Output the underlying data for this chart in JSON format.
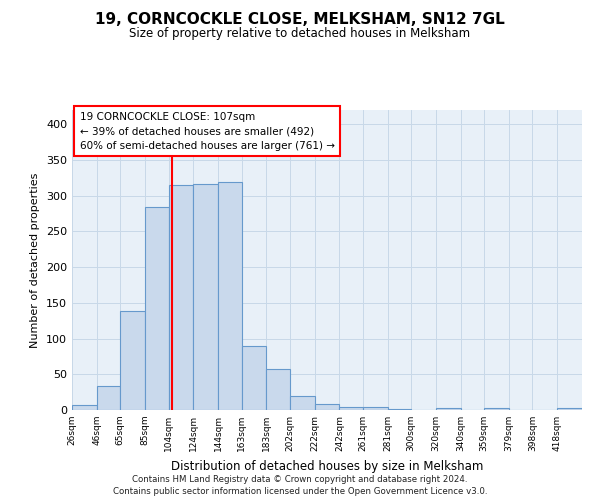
{
  "title": "19, CORNCOCKLE CLOSE, MELKSHAM, SN12 7GL",
  "subtitle": "Size of property relative to detached houses in Melksham",
  "xlabel": "Distribution of detached houses by size in Melksham",
  "ylabel": "Number of detached properties",
  "bin_labels": [
    "26sqm",
    "46sqm",
    "65sqm",
    "85sqm",
    "104sqm",
    "124sqm",
    "144sqm",
    "163sqm",
    "183sqm",
    "202sqm",
    "222sqm",
    "242sqm",
    "261sqm",
    "281sqm",
    "300sqm",
    "320sqm",
    "340sqm",
    "359sqm",
    "379sqm",
    "398sqm",
    "418sqm"
  ],
  "bar_values": [
    7,
    34,
    139,
    284,
    315,
    316,
    319,
    90,
    57,
    19,
    8,
    4,
    4,
    1,
    0,
    3,
    0,
    3,
    0,
    0,
    3
  ],
  "bar_color": "#c9d9ec",
  "bar_edge_color": "#6699cc",
  "property_line_x": 107,
  "property_line_label": "19 CORNCOCKLE CLOSE: 107sqm",
  "annotation_line1": "← 39% of detached houses are smaller (492)",
  "annotation_line2": "60% of semi-detached houses are larger (761) →",
  "ylim": [
    0,
    420
  ],
  "yticks": [
    0,
    50,
    100,
    150,
    200,
    250,
    300,
    350,
    400
  ],
  "grid_color": "#c8d8e8",
  "bg_color": "#e8f0f8",
  "footnote1": "Contains HM Land Registry data © Crown copyright and database right 2024.",
  "footnote2": "Contains public sector information licensed under the Open Government Licence v3.0.",
  "bin_edges": [
    26,
    46,
    65,
    85,
    104,
    124,
    144,
    163,
    183,
    202,
    222,
    242,
    261,
    281,
    300,
    320,
    340,
    359,
    379,
    398,
    418,
    438
  ]
}
